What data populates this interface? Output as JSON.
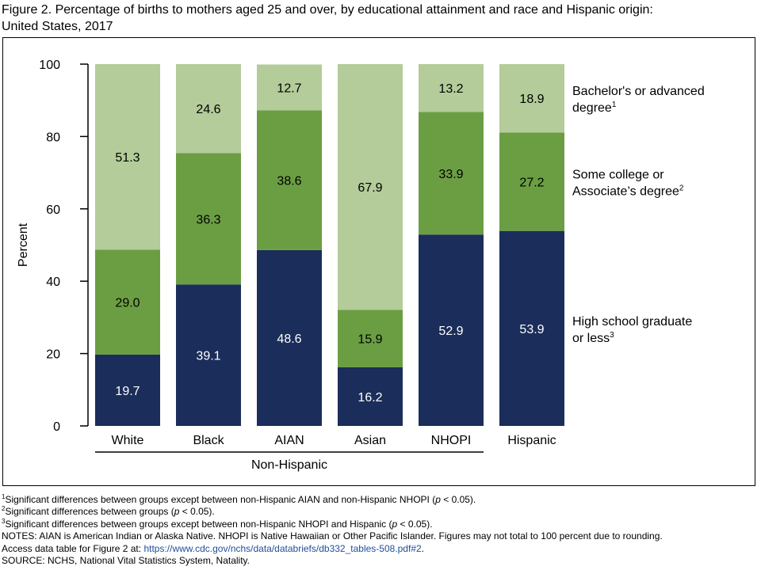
{
  "figure": {
    "title_line1": "Figure 2. Percentage of births to mothers aged 25 and over, by educational attainment and race and Hispanic origin:",
    "title_line2": "United States, 2017"
  },
  "chart_data": {
    "type": "bar",
    "stacked": true,
    "categories": [
      "White",
      "Black",
      "AIAN",
      "Asian",
      "NHOPI",
      "Hispanic"
    ],
    "group_label": "Non-Hispanic",
    "group_members": [
      "White",
      "Black",
      "AIAN",
      "Asian",
      "NHOPI"
    ],
    "ylabel": "Percent",
    "ylim": [
      0,
      100
    ],
    "yticks": [
      0,
      20,
      40,
      60,
      80,
      100
    ],
    "grid": false,
    "legend_position": "right",
    "series": [
      {
        "name": "High school graduate or less",
        "sup": "3",
        "legend_line1": "High school graduate",
        "legend_line2": "or less",
        "color": "#1b2d5a",
        "label_color": "#ffffff",
        "values": [
          19.7,
          39.1,
          48.6,
          16.2,
          52.9,
          53.9
        ]
      },
      {
        "name": "Some college or Associate’s degree",
        "sup": "2",
        "legend_line1": "Some college or",
        "legend_line2": "Associate’s degree",
        "color": "#6b9e43",
        "label_color": "#000000",
        "values": [
          29.0,
          36.3,
          38.6,
          15.9,
          33.9,
          27.2
        ]
      },
      {
        "name": "Bachelor's or advanced degree",
        "sup": "1",
        "legend_line1": "Bachelor's or advanced",
        "legend_line2": "degree",
        "color": "#b3cc99",
        "label_color": "#000000",
        "values": [
          51.3,
          24.6,
          12.7,
          67.9,
          13.2,
          18.9
        ]
      }
    ]
  },
  "notes": {
    "fn1_sup": "1",
    "fn1_a": "Significant differences between groups except between non-Hispanic AIAN and non-Hispanic NHOPI (",
    "fn1_p": "p",
    "fn1_b": " < 0.05).",
    "fn2_sup": "2",
    "fn2_a": "Significant differences between groups (",
    "fn2_p": "p",
    "fn2_b": " < 0.05).",
    "fn3_sup": "3",
    "fn3_a": "Significant differences between groups except between non-Hispanic NHOPI and Hispanic (",
    "fn3_p": "p",
    "fn3_b": " < 0.05).",
    "notes_line": "NOTES: AIAN is American Indian or Alaska Native. NHOPI is Native Hawaiian or Other Pacific Islander. Figures may not total to 100 percent due to rounding.",
    "access_prefix": "Access data table for Figure 2 at: ",
    "access_link": "https://www.cdc.gov/nchs/data/databriefs/db332_tables-508.pdf#2",
    "access_suffix": ".",
    "source_line": "SOURCE: NCHS, National Vital Statistics System, Natality."
  }
}
